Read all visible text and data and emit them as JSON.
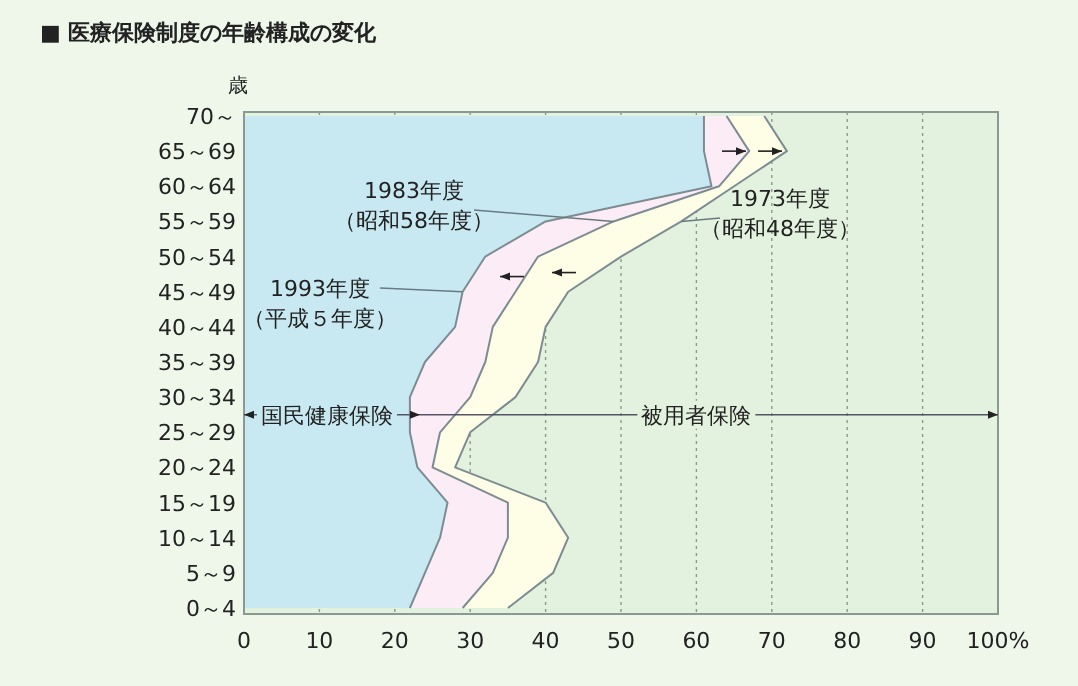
{
  "chart_data": {
    "type": "area",
    "orientation": "horizontal",
    "title": "■ 医療保険制度の年齢構成の変化",
    "ylabel": "歳",
    "categories": [
      "70～",
      "65～69",
      "60～64",
      "55～59",
      "50～54",
      "45～49",
      "40～44",
      "35～39",
      "30～34",
      "25～29",
      "20～24",
      "15～19",
      "10～14",
      "5～9",
      "0～4"
    ],
    "series": [
      {
        "name": "1973年度（昭和48年度）",
        "color": "#fefde6",
        "values": [
          69,
          72,
          65,
          58,
          50,
          43,
          40,
          39,
          36,
          30,
          28,
          40,
          43,
          41,
          35
        ]
      },
      {
        "name": "1983年度（昭和58年度）",
        "color": "#fcecf6",
        "values": [
          64,
          67,
          63,
          49,
          39,
          36,
          33,
          32,
          30,
          26,
          25,
          35,
          35,
          33,
          29
        ]
      },
      {
        "name": "1993年度（平成５年度）",
        "color": "#c8e9f1",
        "values": [
          61,
          61,
          62,
          40,
          32,
          29,
          28,
          24,
          22,
          22,
          23,
          27,
          26,
          24,
          22
        ]
      }
    ],
    "xlim": [
      0,
      100
    ],
    "xticks": [
      0,
      10,
      20,
      30,
      40,
      50,
      60,
      70,
      80,
      90,
      {
        "value": 100,
        "label": "100%"
      }
    ],
    "grid": "x",
    "legend": false,
    "annotations": [
      "国民健康保険",
      "被用者保険"
    ]
  }
}
